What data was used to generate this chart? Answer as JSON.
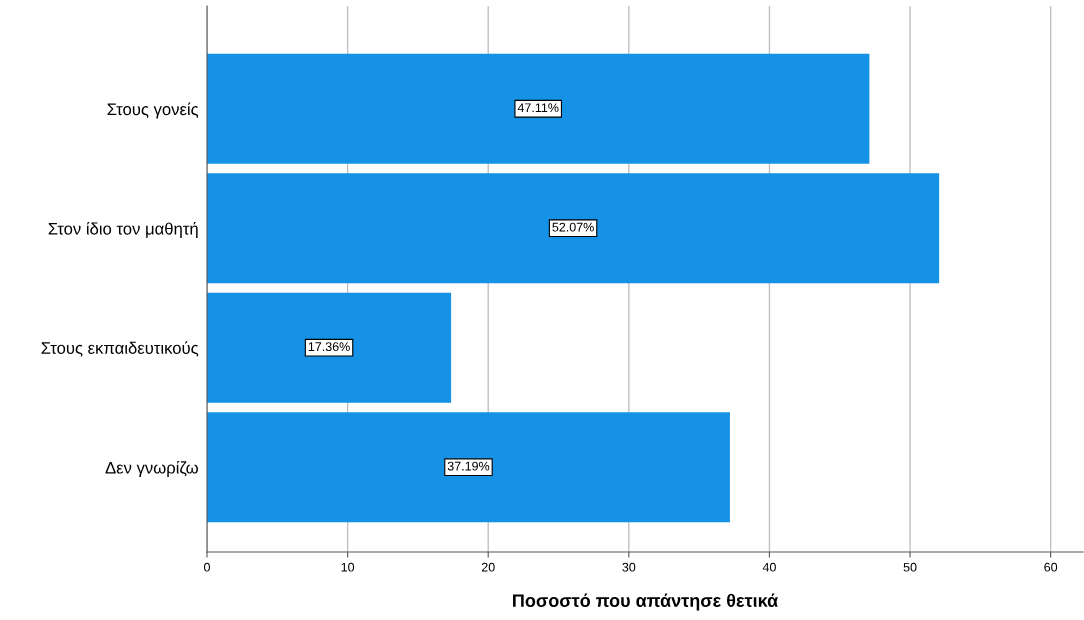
{
  "chart_data": {
    "type": "bar",
    "orientation": "horizontal",
    "xlabel": "Ποσοστό που απάντησε θετικά",
    "categories": [
      "Στους γονείς",
      "Στον ίδιο τον μαθητή",
      "Στους εκπαιδευτικούς",
      "Δεν γνωρίζω"
    ],
    "values": [
      47.11,
      52.07,
      17.36,
      37.19
    ],
    "value_labels": [
      "47.11%",
      "52.07%",
      "17.36%",
      "37.19%"
    ],
    "color": "#1591e6",
    "xlim": [
      0,
      62.3
    ],
    "xticks": [
      0,
      10,
      20,
      30,
      40,
      50,
      60
    ],
    "grid": "x"
  }
}
